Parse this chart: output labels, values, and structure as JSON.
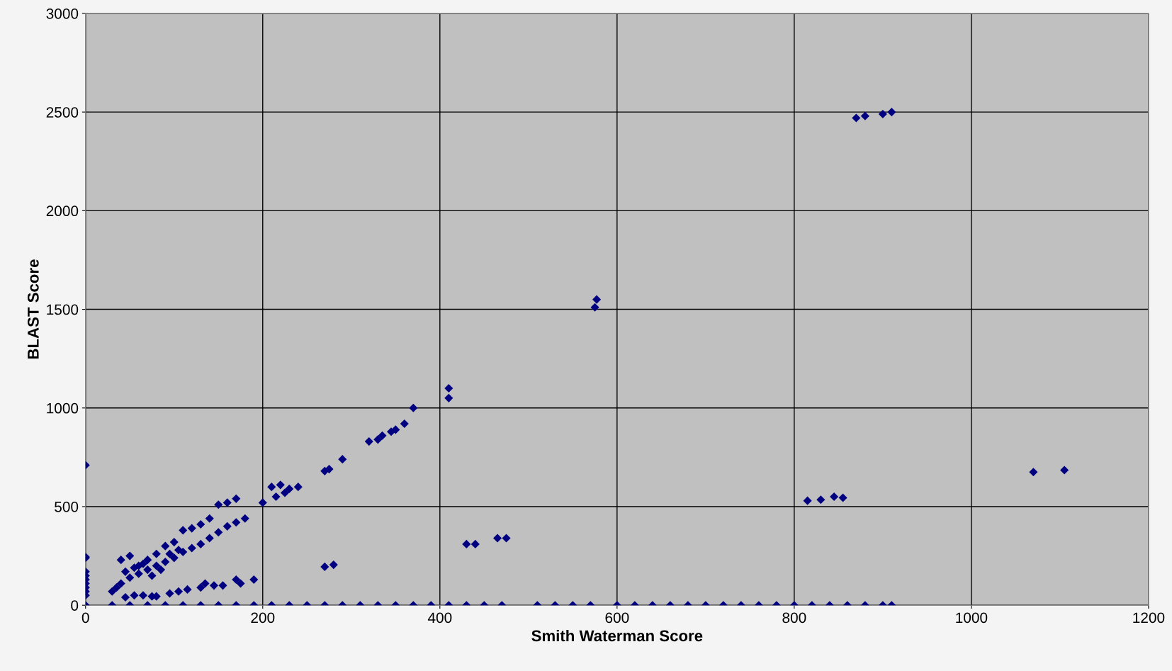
{
  "chart_data": {
    "type": "scatter",
    "xlabel": "Smith Waterman Score",
    "ylabel": "BLAST Score",
    "xlim": [
      0,
      1200
    ],
    "xticks": [
      0,
      200,
      400,
      600,
      800,
      1000,
      1200
    ],
    "ylim": [
      0,
      3000
    ],
    "yticks": [
      0,
      500,
      1000,
      1500,
      2000,
      2500,
      3000
    ],
    "grid": true,
    "marker": "diamond",
    "series": [
      {
        "color": "#000080",
        "x": [
          0,
          0,
          0,
          0,
          0,
          0,
          0,
          0,
          0,
          0,
          0,
          40,
          50,
          60,
          70,
          80,
          90,
          100,
          110,
          120,
          130,
          140,
          150,
          160,
          170,
          40,
          50,
          60,
          70,
          80,
          90,
          100,
          110,
          120,
          130,
          140,
          150,
          160,
          170,
          180,
          30,
          35,
          45,
          55,
          65,
          75,
          85,
          95,
          105,
          45,
          55,
          65,
          75,
          80,
          95,
          105,
          115,
          130,
          135,
          145,
          155,
          170,
          175,
          190,
          200,
          210,
          215,
          220,
          225,
          230,
          240,
          270,
          275,
          290,
          320,
          330,
          335,
          345,
          350,
          360,
          370,
          410,
          410,
          575,
          577,
          270,
          280,
          430,
          440,
          465,
          475,
          815,
          830,
          845,
          855,
          870,
          880,
          900,
          910,
          1070,
          1105,
          30,
          50,
          70,
          90,
          110,
          130,
          150,
          170,
          190,
          210,
          230,
          250,
          270,
          290,
          310,
          330,
          350,
          370,
          390,
          410,
          430,
          450,
          470,
          510,
          530,
          550,
          570,
          600,
          620,
          640,
          660,
          680,
          700,
          720,
          740,
          760,
          780,
          800,
          820,
          840,
          860,
          880,
          900,
          910
        ],
        "values": [
          710,
          245,
          240,
          170,
          150,
          130,
          110,
          90,
          70,
          50,
          0,
          230,
          250,
          200,
          230,
          260,
          300,
          320,
          380,
          390,
          410,
          440,
          510,
          520,
          540,
          110,
          140,
          160,
          180,
          200,
          220,
          240,
          270,
          290,
          310,
          340,
          370,
          400,
          420,
          440,
          70,
          90,
          170,
          190,
          210,
          150,
          180,
          260,
          280,
          40,
          50,
          50,
          45,
          45,
          60,
          70,
          80,
          90,
          110,
          100,
          100,
          130,
          110,
          130,
          520,
          600,
          550,
          610,
          570,
          590,
          600,
          680,
          690,
          740,
          830,
          840,
          860,
          880,
          890,
          920,
          1000,
          1100,
          1050,
          1510,
          1550,
          195,
          205,
          310,
          310,
          340,
          340,
          530,
          535,
          550,
          545,
          2470,
          2480,
          2490,
          2500,
          675,
          685,
          0,
          0,
          0,
          0,
          0,
          0,
          0,
          0,
          0,
          0,
          0,
          0,
          0,
          0,
          0,
          0,
          0,
          0,
          0,
          0,
          0,
          0,
          0,
          0,
          0,
          0,
          0,
          0,
          0,
          0,
          0,
          0,
          0,
          0,
          0,
          0,
          0,
          0,
          0,
          0,
          0,
          0,
          0,
          0
        ]
      }
    ]
  }
}
